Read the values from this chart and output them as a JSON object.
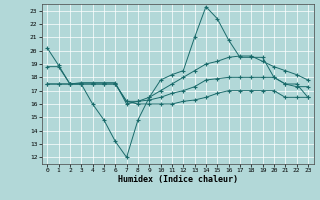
{
  "xlabel": "Humidex (Indice chaleur)",
  "background_color": "#b2d8d8",
  "grid_color": "#ffffff",
  "line_color": "#1a6b6b",
  "xlim": [
    -0.5,
    23.5
  ],
  "ylim": [
    11.5,
    23.5
  ],
  "x_ticks": [
    0,
    1,
    2,
    3,
    4,
    5,
    6,
    7,
    8,
    9,
    10,
    11,
    12,
    13,
    14,
    15,
    16,
    17,
    18,
    19,
    20,
    21,
    22,
    23
  ],
  "y_ticks": [
    12,
    13,
    14,
    15,
    16,
    17,
    18,
    19,
    20,
    21,
    22,
    23
  ],
  "line1_x": [
    0,
    1,
    2,
    3,
    4,
    5,
    6,
    7,
    8,
    9,
    10,
    11,
    12,
    13,
    14,
    15,
    16,
    17,
    18,
    19,
    20,
    21,
    22,
    23
  ],
  "line1_y": [
    20.2,
    18.9,
    17.5,
    17.5,
    16.0,
    14.8,
    13.2,
    12.0,
    14.8,
    16.5,
    17.8,
    18.2,
    18.5,
    21.0,
    23.3,
    22.4,
    20.8,
    19.5,
    19.5,
    19.5,
    18.0,
    17.5,
    17.3,
    17.3
  ],
  "line2_x": [
    0,
    1,
    2,
    3,
    4,
    5,
    6,
    7,
    8,
    9,
    10,
    11,
    12,
    13,
    14,
    15,
    16,
    17,
    18,
    19,
    20,
    21,
    22,
    23
  ],
  "line2_y": [
    18.8,
    18.8,
    17.5,
    17.6,
    17.6,
    17.6,
    17.6,
    16.0,
    16.2,
    16.5,
    17.0,
    17.5,
    18.0,
    18.5,
    19.0,
    19.2,
    19.5,
    19.6,
    19.6,
    19.2,
    18.8,
    18.5,
    18.2,
    17.8
  ],
  "line3_x": [
    0,
    1,
    2,
    3,
    4,
    5,
    6,
    7,
    8,
    9,
    10,
    11,
    12,
    13,
    14,
    15,
    16,
    17,
    18,
    19,
    20,
    21,
    22,
    23
  ],
  "line3_y": [
    17.5,
    17.5,
    17.5,
    17.5,
    17.5,
    17.5,
    17.5,
    16.2,
    16.2,
    16.3,
    16.5,
    16.8,
    17.0,
    17.3,
    17.8,
    17.9,
    18.0,
    18.0,
    18.0,
    18.0,
    18.0,
    17.5,
    17.5,
    16.5
  ],
  "line4_x": [
    0,
    1,
    2,
    3,
    4,
    5,
    6,
    7,
    8,
    9,
    10,
    11,
    12,
    13,
    14,
    15,
    16,
    17,
    18,
    19,
    20,
    21,
    22,
    23
  ],
  "line4_y": [
    17.5,
    17.5,
    17.5,
    17.5,
    17.5,
    17.5,
    17.5,
    16.2,
    16.0,
    16.0,
    16.0,
    16.0,
    16.2,
    16.3,
    16.5,
    16.8,
    17.0,
    17.0,
    17.0,
    17.0,
    17.0,
    16.5,
    16.5,
    16.5
  ]
}
